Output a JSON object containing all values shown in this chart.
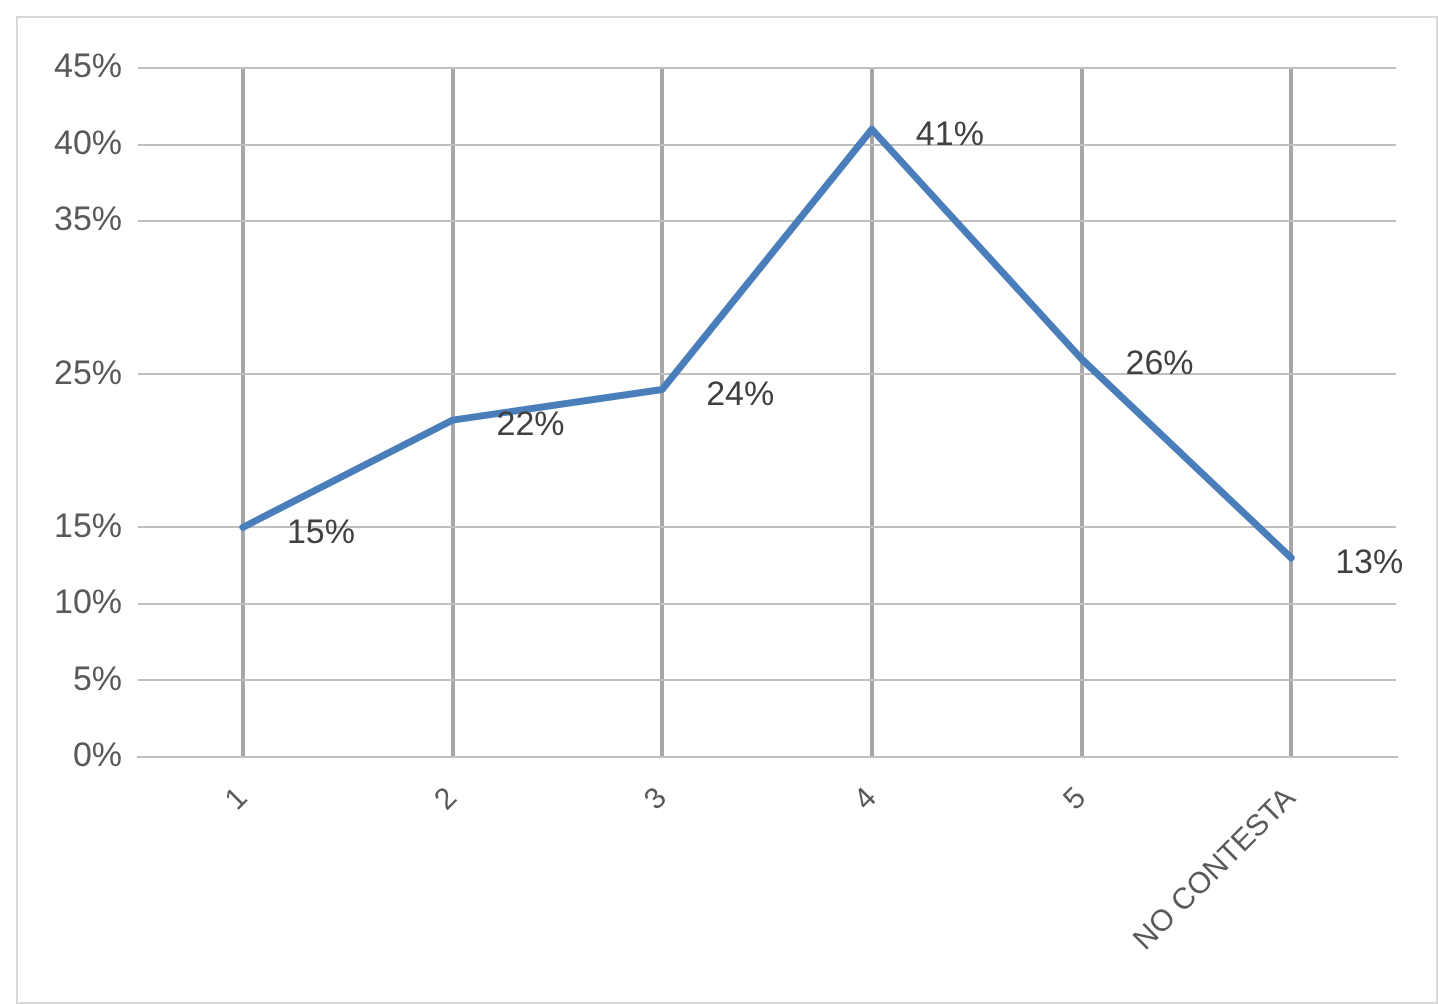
{
  "chart_data": {
    "type": "line",
    "categories": [
      "1",
      "2",
      "3",
      "4",
      "5",
      "NO CONTESTA"
    ],
    "series": [
      {
        "color": "#4a7ebb",
        "values": [
          15,
          22,
          24,
          41,
          26,
          13
        ],
        "value_labels": [
          "15%",
          "22%",
          "24%",
          "41%",
          "26%",
          "13%"
        ]
      }
    ],
    "ylim": [
      0,
      45
    ],
    "yticks": [
      {
        "value": 0,
        "label": "0%"
      },
      {
        "value": 5,
        "label": "5%"
      },
      {
        "value": 10,
        "label": "10%"
      },
      {
        "value": 15,
        "label": "15%"
      },
      {
        "value": 25,
        "label": "25%"
      },
      {
        "value": 35,
        "label": "35%"
      },
      {
        "value": 40,
        "label": "40%"
      },
      {
        "value": 45,
        "label": "45%"
      }
    ],
    "grid": true,
    "legend": false,
    "marker": "none",
    "line_style": "solid"
  }
}
